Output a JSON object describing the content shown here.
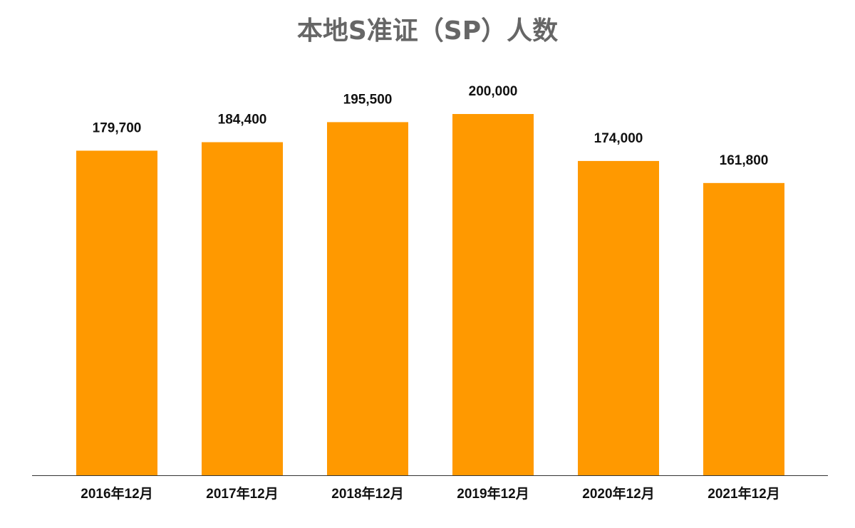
{
  "chart_data": {
    "type": "bar",
    "title": "本地S准证（SP）人数",
    "categories": [
      "2016年12月",
      "2017年12月",
      "2018年12月",
      "2019年12月",
      "2020年12月",
      "2021年12月"
    ],
    "values": [
      179700,
      184400,
      195500,
      200000,
      174000,
      161800
    ],
    "data_labels": [
      "179,700",
      "184,400",
      "195,500",
      "200,000",
      "174,000",
      "161,800"
    ],
    "xlabel": "",
    "ylabel": "",
    "ylim": [
      0,
      200000
    ],
    "grid": false,
    "legend": "none",
    "colors": {
      "bar": "#FF9900",
      "title": "#666666",
      "axis": "#333333"
    }
  }
}
